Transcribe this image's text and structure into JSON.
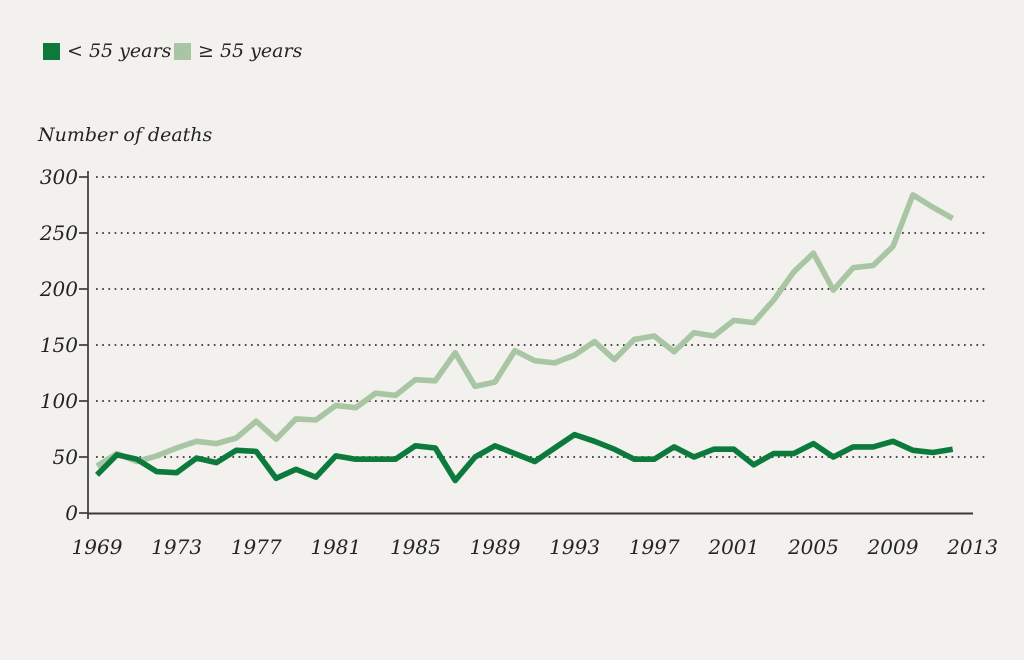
{
  "legend": {
    "items": [
      {
        "label": "< 55 years",
        "color": "#0d7a3d"
      },
      {
        "label": "≥ 55 years",
        "color": "#a8c6a3"
      }
    ]
  },
  "chart_data": {
    "type": "line",
    "title": "Number of deaths",
    "ylabel": "Number of deaths",
    "xlabel": "",
    "x": [
      1969,
      1970,
      1971,
      1972,
      1973,
      1974,
      1975,
      1976,
      1977,
      1978,
      1979,
      1980,
      1981,
      1982,
      1983,
      1984,
      1985,
      1986,
      1987,
      1988,
      1989,
      1990,
      1991,
      1992,
      1993,
      1994,
      1995,
      1996,
      1997,
      1998,
      1999,
      2000,
      2001,
      2002,
      2003,
      2004,
      2005,
      2006,
      2007,
      2008,
      2009,
      2010,
      2011,
      2012
    ],
    "series": [
      {
        "name": "< 55 years",
        "color": "#0d7a3d",
        "values": [
          34,
          52,
          48,
          37,
          36,
          49,
          45,
          56,
          55,
          31,
          39,
          32,
          51,
          48,
          48,
          48,
          60,
          58,
          29,
          50,
          60,
          53,
          46,
          58,
          70,
          64,
          57,
          48,
          48,
          59,
          50,
          57,
          57,
          43,
          53,
          53,
          62,
          50,
          59,
          59,
          64,
          56,
          54,
          57
        ]
      },
      {
        "name": "≥ 55 years",
        "color": "#a8c6a3",
        "values": [
          42,
          53,
          46,
          51,
          58,
          64,
          62,
          67,
          82,
          66,
          84,
          83,
          96,
          94,
          107,
          105,
          119,
          118,
          143,
          113,
          117,
          145,
          136,
          134,
          141,
          153,
          137,
          155,
          158,
          144,
          161,
          158,
          172,
          170,
          190,
          215,
          232,
          199,
          219,
          221,
          238,
          284,
          273,
          263
        ]
      }
    ],
    "xticks": [
      1969,
      1973,
      1977,
      1981,
      1985,
      1989,
      1993,
      1997,
      2001,
      2005,
      2009,
      2013
    ],
    "yticks": [
      0,
      50,
      100,
      150,
      200,
      250,
      300
    ],
    "xlim": [
      1969,
      2013
    ],
    "ylim": [
      0,
      300
    ],
    "grid": "horizontal dotted lines at each y tick",
    "legend_position": "top-left"
  },
  "style": {
    "background": "#f2f1ed",
    "axis_color": "#3a3a38",
    "grid_color": "#4c4c49",
    "text_color": "#242422"
  }
}
